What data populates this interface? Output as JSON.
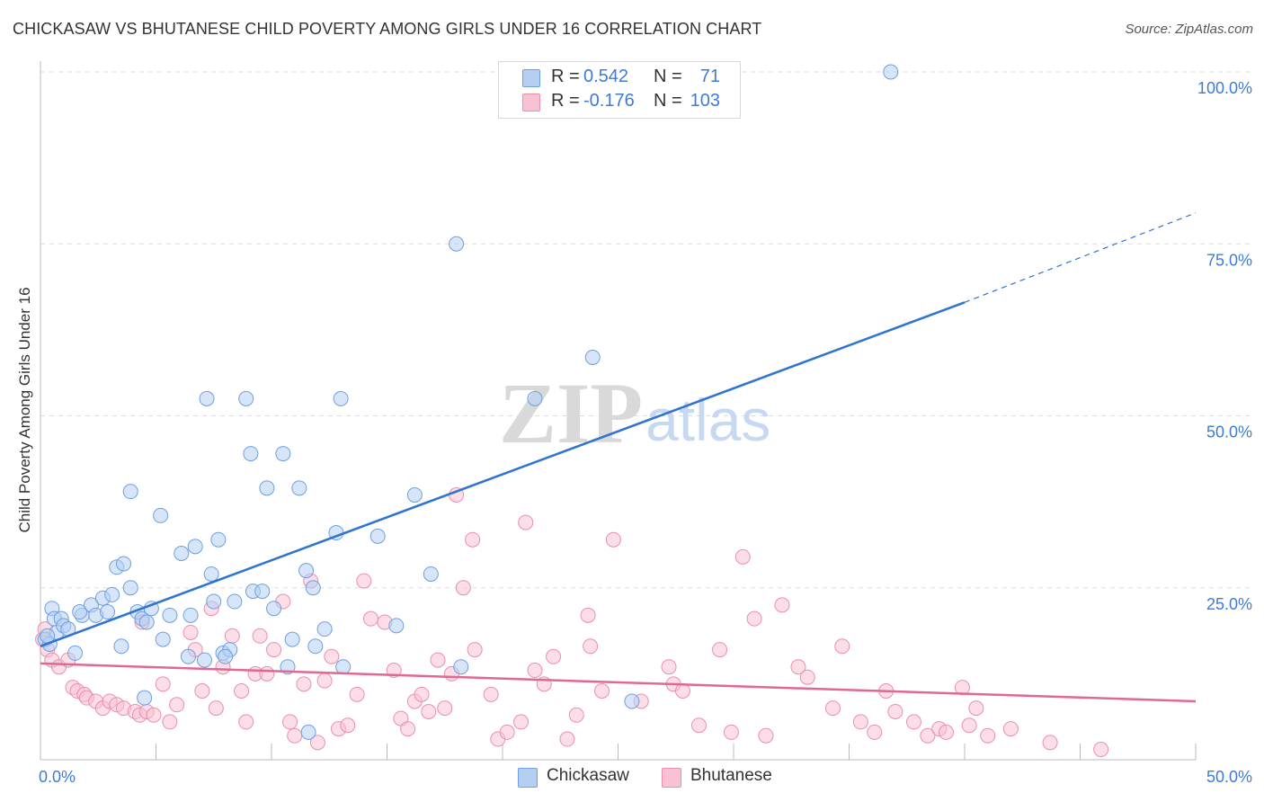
{
  "header": {
    "title": "CHICKASAW VS BHUTANESE CHILD POVERTY AMONG GIRLS UNDER 16 CORRELATION CHART",
    "source": "Source: ZipAtlas.com"
  },
  "watermark": {
    "zip": "ZIP",
    "atlas": "atlas"
  },
  "legend_top": [
    {
      "r_label": "R =",
      "r_value": "0.542",
      "n_label": "N =",
      "n_value": "71"
    },
    {
      "r_label": "R =",
      "r_value": "-0.176",
      "n_label": "N =",
      "n_value": "103"
    }
  ],
  "legend_bottom": [
    {
      "label": "Chickasaw"
    },
    {
      "label": "Bhutanese"
    }
  ],
  "colors": {
    "chickasaw_fill": "#b5cff3",
    "chickasaw_stroke": "#6f9fe0",
    "chickasaw_line": "#2f74d0",
    "bhutanese_fill": "#f8c2d2",
    "bhutanese_stroke": "#ea8fae",
    "bhutanese_line": "#e06893",
    "tick_label": "#3d7bd8",
    "grid": "#dddddd"
  },
  "chart_data": {
    "type": "scatter",
    "title": "CHICKASAW VS BHUTANESE CHILD POVERTY AMONG GIRLS UNDER 16 CORRELATION CHART",
    "xlabel": "",
    "ylabel": "Child Poverty Among Girls Under 16",
    "xlim": [
      0,
      50
    ],
    "ylim": [
      0,
      100
    ],
    "x_tick_labels": [
      {
        "value": 0,
        "label": "0.0%"
      },
      {
        "value": 50,
        "label": "50.0%"
      }
    ],
    "y_tick_labels": [
      {
        "value": 25,
        "label": "25.0%"
      },
      {
        "value": 50,
        "label": "50.0%"
      },
      {
        "value": 75,
        "label": "75.0%"
      },
      {
        "value": 100,
        "label": "100.0%"
      }
    ],
    "grid": true,
    "legend_position": "top-center",
    "series": [
      {
        "name": "Chickasaw",
        "points": [
          [
            0.2,
            17.5
          ],
          [
            0.4,
            16.8
          ],
          [
            0.5,
            22.0
          ],
          [
            0.6,
            20.5
          ],
          [
            0.7,
            18.5
          ],
          [
            0.9,
            20.5
          ],
          [
            1.0,
            19.5
          ],
          [
            1.2,
            19.0
          ],
          [
            1.5,
            15.5
          ],
          [
            1.8,
            21.0
          ],
          [
            1.7,
            21.5
          ],
          [
            2.2,
            22.5
          ],
          [
            2.4,
            21.0
          ],
          [
            2.7,
            23.5
          ],
          [
            2.9,
            21.5
          ],
          [
            3.1,
            24.0
          ],
          [
            3.3,
            28.0
          ],
          [
            3.5,
            16.5
          ],
          [
            3.6,
            28.5
          ],
          [
            3.9,
            39.0
          ],
          [
            3.9,
            25.0
          ],
          [
            4.2,
            21.5
          ],
          [
            4.4,
            20.5
          ],
          [
            4.6,
            20.0
          ],
          [
            4.8,
            22.0
          ],
          [
            5.2,
            35.5
          ],
          [
            5.3,
            17.5
          ],
          [
            5.6,
            21.0
          ],
          [
            6.1,
            30.0
          ],
          [
            6.4,
            15.0
          ],
          [
            6.5,
            21.0
          ],
          [
            6.7,
            31.0
          ],
          [
            7.1,
            14.5
          ],
          [
            7.2,
            52.5
          ],
          [
            7.4,
            27.0
          ],
          [
            7.5,
            23.0
          ],
          [
            7.7,
            32.0
          ],
          [
            7.9,
            15.5
          ],
          [
            8.2,
            16.0
          ],
          [
            8.4,
            23.0
          ],
          [
            8.9,
            52.5
          ],
          [
            9.1,
            44.5
          ],
          [
            9.2,
            24.5
          ],
          [
            9.6,
            24.5
          ],
          [
            9.8,
            39.5
          ],
          [
            10.1,
            22.0
          ],
          [
            10.5,
            44.5
          ],
          [
            10.7,
            13.5
          ],
          [
            10.9,
            17.5
          ],
          [
            11.2,
            39.5
          ],
          [
            11.5,
            27.5
          ],
          [
            11.6,
            4.0
          ],
          [
            11.8,
            25.0
          ],
          [
            11.9,
            16.5
          ],
          [
            12.3,
            19.0
          ],
          [
            13.0,
            52.5
          ],
          [
            12.8,
            33.0
          ],
          [
            13.1,
            13.5
          ],
          [
            14.6,
            32.5
          ],
          [
            15.4,
            19.5
          ],
          [
            16.2,
            38.5
          ],
          [
            16.9,
            27.0
          ],
          [
            18.0,
            75.0
          ],
          [
            18.2,
            13.5
          ],
          [
            21.4,
            52.5
          ],
          [
            23.9,
            58.5
          ],
          [
            25.6,
            8.5
          ],
          [
            36.8,
            100.0
          ],
          [
            0.3,
            18.0
          ],
          [
            4.5,
            9.0
          ],
          [
            8.0,
            15.0
          ]
        ]
      },
      {
        "name": "Bhutanese",
        "points": [
          [
            0.1,
            17.5
          ],
          [
            0.3,
            16.0
          ],
          [
            0.5,
            14.5
          ],
          [
            0.8,
            13.5
          ],
          [
            1.2,
            14.5
          ],
          [
            1.4,
            10.5
          ],
          [
            1.6,
            10.0
          ],
          [
            1.9,
            9.5
          ],
          [
            2.0,
            9.0
          ],
          [
            2.4,
            8.5
          ],
          [
            2.7,
            7.5
          ],
          [
            3.0,
            8.5
          ],
          [
            3.3,
            8.0
          ],
          [
            3.6,
            7.5
          ],
          [
            4.1,
            7.0
          ],
          [
            4.3,
            6.5
          ],
          [
            4.4,
            20.0
          ],
          [
            4.6,
            7.0
          ],
          [
            4.9,
            6.5
          ],
          [
            5.3,
            11.0
          ],
          [
            5.6,
            5.5
          ],
          [
            5.9,
            8.0
          ],
          [
            6.5,
            18.5
          ],
          [
            6.7,
            16.0
          ],
          [
            7.0,
            10.0
          ],
          [
            7.4,
            22.0
          ],
          [
            7.6,
            7.5
          ],
          [
            7.9,
            13.5
          ],
          [
            8.3,
            18.0
          ],
          [
            8.7,
            10.0
          ],
          [
            8.9,
            5.5
          ],
          [
            9.3,
            12.5
          ],
          [
            9.5,
            18.0
          ],
          [
            9.8,
            12.5
          ],
          [
            10.1,
            16.0
          ],
          [
            10.5,
            23.0
          ],
          [
            10.8,
            5.5
          ],
          [
            11.0,
            3.5
          ],
          [
            11.4,
            11.0
          ],
          [
            11.7,
            26.0
          ],
          [
            12.0,
            2.5
          ],
          [
            12.3,
            11.5
          ],
          [
            12.6,
            15.0
          ],
          [
            12.9,
            4.5
          ],
          [
            13.3,
            5.0
          ],
          [
            13.7,
            9.5
          ],
          [
            14.0,
            26.0
          ],
          [
            14.3,
            20.5
          ],
          [
            14.9,
            20.0
          ],
          [
            15.3,
            13.0
          ],
          [
            15.6,
            6.0
          ],
          [
            15.9,
            4.5
          ],
          [
            16.2,
            8.5
          ],
          [
            16.5,
            9.5
          ],
          [
            16.8,
            7.0
          ],
          [
            17.2,
            14.5
          ],
          [
            17.5,
            7.5
          ],
          [
            17.8,
            12.5
          ],
          [
            18.0,
            38.5
          ],
          [
            18.3,
            25.0
          ],
          [
            18.7,
            32.0
          ],
          [
            18.8,
            16.0
          ],
          [
            19.5,
            9.5
          ],
          [
            19.8,
            3.0
          ],
          [
            20.2,
            4.0
          ],
          [
            20.8,
            5.5
          ],
          [
            21.0,
            34.5
          ],
          [
            21.4,
            13.0
          ],
          [
            21.8,
            11.0
          ],
          [
            22.2,
            15.0
          ],
          [
            22.8,
            3.0
          ],
          [
            23.2,
            6.5
          ],
          [
            23.7,
            21.0
          ],
          [
            23.8,
            16.5
          ],
          [
            24.3,
            10.0
          ],
          [
            24.8,
            32.0
          ],
          [
            26.0,
            8.5
          ],
          [
            27.2,
            13.5
          ],
          [
            27.4,
            11.0
          ],
          [
            27.8,
            10.0
          ],
          [
            28.5,
            5.0
          ],
          [
            29.4,
            16.0
          ],
          [
            29.9,
            4.0
          ],
          [
            30.4,
            29.5
          ],
          [
            30.9,
            20.5
          ],
          [
            31.4,
            3.5
          ],
          [
            32.1,
            22.5
          ],
          [
            32.8,
            13.5
          ],
          [
            33.2,
            12.0
          ],
          [
            34.3,
            7.5
          ],
          [
            34.7,
            16.5
          ],
          [
            35.5,
            5.5
          ],
          [
            36.1,
            4.0
          ],
          [
            36.6,
            10.0
          ],
          [
            37.0,
            7.0
          ],
          [
            37.8,
            5.5
          ],
          [
            38.4,
            3.5
          ],
          [
            38.9,
            4.5
          ],
          [
            39.2,
            4.0
          ],
          [
            39.9,
            10.5
          ],
          [
            40.2,
            5.0
          ],
          [
            40.5,
            7.5
          ],
          [
            41.0,
            3.5
          ],
          [
            42.0,
            4.5
          ],
          [
            43.7,
            2.5
          ],
          [
            45.9,
            1.5
          ],
          [
            0.2,
            19.0
          ]
        ]
      }
    ],
    "trend_lines": [
      {
        "series": "Chickasaw",
        "x0": 0,
        "y0": 16.5,
        "x1": 40.0,
        "y1": 66.5,
        "dashed_to_x": 50.0,
        "dashed_to_y": 79.5
      },
      {
        "series": "Bhutanese",
        "x0": 0,
        "y0": 14.0,
        "x1": 50.0,
        "y1": 8.5
      }
    ]
  }
}
